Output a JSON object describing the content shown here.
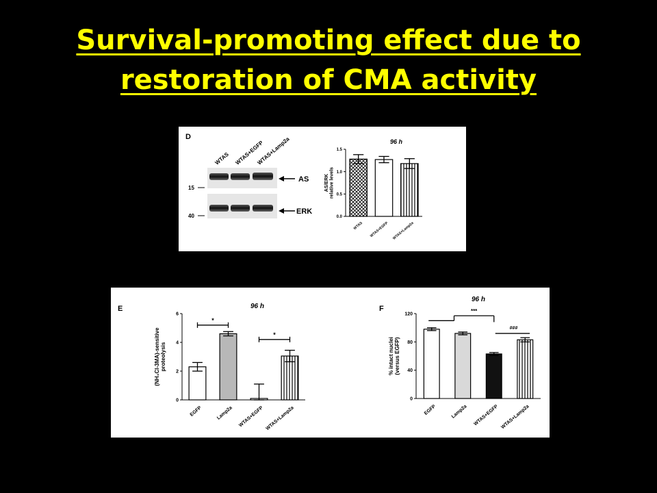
{
  "slide": {
    "title_line1": "Survival-promoting effect due to",
    "title_line2": "restoration of CMA activity"
  },
  "colors": {
    "background": "#000000",
    "title": "#ffff00",
    "panel": "#ffffff"
  },
  "blot": {
    "panel_letter": "D",
    "lanes": [
      "WTAS",
      "WTAS+EGFP",
      "WTAS+Lamp2a"
    ],
    "bands": [
      {
        "label": "AS",
        "marker": "15"
      },
      {
        "label": "ERK",
        "marker": "40"
      }
    ]
  },
  "chart_data": [
    {
      "id": "D",
      "type": "bar",
      "title": "96 h",
      "ylabel": "AS/ERK relative levels",
      "categories": [
        "WTAS",
        "WTAS+EGFP",
        "WTAS+Lamp2a"
      ],
      "values": [
        1.28,
        1.27,
        1.18
      ],
      "errors": [
        0.1,
        0.07,
        0.11
      ],
      "fills": [
        "crosshatch",
        "white",
        "vertical-stripes"
      ],
      "ylim": [
        0,
        1.5
      ],
      "yticks": [
        "0.0",
        "0.5",
        "1.0",
        "1.5"
      ]
    },
    {
      "id": "E",
      "type": "bar",
      "title": "96 h",
      "ylabel": "(NH4Cl-3MA)-sensitive proteolysis",
      "categories": [
        "EGFP",
        "Lamp2a",
        "WTAS+EGFP",
        "WTAS+Lamp2a"
      ],
      "values": [
        2.3,
        4.6,
        0.1,
        3.05
      ],
      "errors": [
        0.3,
        0.15,
        1.0,
        0.4
      ],
      "fills": [
        "white",
        "gray",
        "white",
        "vertical-stripes"
      ],
      "ylim": [
        0,
        6
      ],
      "yticks": [
        "0",
        "2",
        "4",
        "6"
      ],
      "significance": [
        {
          "from": 0,
          "to": 1,
          "label": "*"
        },
        {
          "from": 2,
          "to": 3,
          "label": "*"
        }
      ]
    },
    {
      "id": "F",
      "type": "bar",
      "title": "96 h",
      "ylabel": "% intact nuclei (versus EGFP)",
      "categories": [
        "EGFP",
        "Lamp2a",
        "WTAS+EGFP",
        "WTAS+Lamp2a"
      ],
      "values": [
        98,
        92,
        63,
        83
      ],
      "errors": [
        2,
        2,
        2,
        3
      ],
      "fills": [
        "white",
        "lightgray",
        "black",
        "vertical-stripes"
      ],
      "ylim": [
        0,
        120
      ],
      "yticks": [
        "0",
        "40",
        "80",
        "120"
      ],
      "significance": [
        {
          "label": "***"
        },
        {
          "label": "###"
        }
      ]
    }
  ]
}
